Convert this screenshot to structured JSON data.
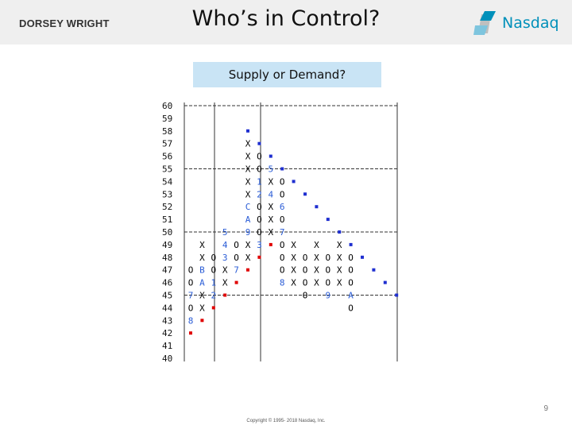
{
  "header": {
    "left_logo": "DORSEY WRIGHT",
    "title": "Who’s in Control?",
    "right_logo": "Nasdaq"
  },
  "subtitle": "Supply or Demand?",
  "chart_data": {
    "type": "point-and-figure",
    "price_levels": [
      60,
      59,
      58,
      57,
      56,
      55,
      54,
      53,
      52,
      51,
      50,
      49,
      48,
      47,
      46,
      45,
      44,
      43,
      42,
      41,
      40
    ],
    "columns": [
      {
        "type": "O",
        "cells": {
          "47": "O",
          "46": "O",
          "45": "7",
          "44": "O",
          "43": "8"
        }
      },
      {
        "type": "X",
        "cells": {
          "49": "X",
          "48": "X",
          "47": "B",
          "46": "A",
          "45": "X",
          "44": "X"
        }
      },
      {
        "type": "O",
        "cells": {
          "48": "O",
          "47": "O",
          "46": "1",
          "45": "2"
        }
      },
      {
        "type": "X",
        "cells": {
          "50": "5",
          "49": "4",
          "48": "3",
          "47": "X",
          "46": "X"
        }
      },
      {
        "type": "O",
        "cells": {
          "49": "O",
          "48": "O",
          "47": "7"
        }
      },
      {
        "type": "X",
        "cells": {
          "57": "X",
          "56": "X",
          "55": "X",
          "54": "X",
          "53": "X",
          "52": "C",
          "51": "A",
          "50": "9",
          "49": "X",
          "48": "X"
        }
      },
      {
        "type": "O",
        "cells": {
          "56": "O",
          "55": "O",
          "54": "1",
          "53": "2",
          "52": "O",
          "51": "O",
          "50": "O",
          "49": "3"
        }
      },
      {
        "type": "X",
        "cells": {
          "55": "5",
          "54": "X",
          "53": "4",
          "52": "X",
          "51": "X",
          "50": "X"
        }
      },
      {
        "type": "O",
        "cells": {
          "54": "O",
          "53": "O",
          "52": "6",
          "51": "O",
          "50": "7",
          "49": "O",
          "48": "O",
          "47": "O",
          "46": "8"
        }
      },
      {
        "type": "X",
        "cells": {
          "49": "X",
          "48": "X",
          "47": "X",
          "46": "X"
        }
      },
      {
        "type": "O",
        "cells": {
          "48": "O",
          "47": "O",
          "46": "O",
          "45": "O"
        }
      },
      {
        "type": "X",
        "cells": {
          "49": "X",
          "48": "X",
          "47": "X",
          "46": "X"
        }
      },
      {
        "type": "O",
        "cells": {
          "48": "O",
          "47": "O",
          "46": "O",
          "45": "9"
        }
      },
      {
        "type": "X",
        "cells": {
          "49": "X",
          "48": "X",
          "47": "X",
          "46": "X"
        }
      },
      {
        "type": "O",
        "cells": {
          "48": "O",
          "47": "O",
          "46": "O",
          "45": "A",
          "44": "O"
        }
      }
    ],
    "trend_lines": {
      "bearish_resistance": [
        [
          5,
          58
        ],
        [
          6,
          57
        ],
        [
          7,
          56
        ],
        [
          8,
          55
        ],
        [
          9,
          54
        ],
        [
          10,
          53
        ],
        [
          11,
          52
        ],
        [
          12,
          51
        ],
        [
          13,
          50
        ],
        [
          14,
          49
        ],
        [
          15,
          48
        ],
        [
          16,
          47
        ],
        [
          17,
          46
        ],
        [
          18,
          45
        ]
      ],
      "bullish_support": [
        [
          0,
          42
        ],
        [
          1,
          43
        ],
        [
          2,
          44
        ],
        [
          3,
          45
        ],
        [
          4,
          46
        ],
        [
          5,
          47
        ],
        [
          6,
          48
        ],
        [
          7,
          49
        ]
      ]
    },
    "dashed_rows": [
      60,
      55,
      50,
      45
    ],
    "colors": {
      "marks": "#000000",
      "month": "#2a5cd6",
      "bearish_line": "#1f2fd0",
      "bullish_line": "#e00000",
      "grid": "#333333"
    }
  },
  "footer": {
    "page_number": "9",
    "copyright": "Copyright © 1995- 2018 Nasdaq, Inc."
  }
}
